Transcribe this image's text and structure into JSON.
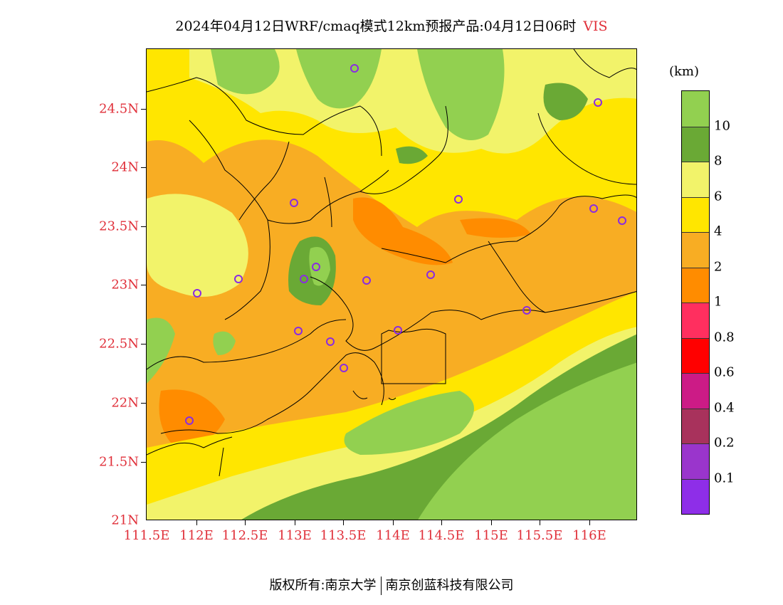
{
  "title": {
    "main": "2024年04月12日WRF/cmaq模式12km预报产品:04月12日06时",
    "variable": "VIS"
  },
  "axes": {
    "lat_labels": [
      "24.5N",
      "24N",
      "23.5N",
      "23N",
      "22.5N",
      "22N",
      "21.5N",
      "21N"
    ],
    "lon_labels": [
      "111.5E",
      "112E",
      "112.5E",
      "113E",
      "113.5E",
      "114E",
      "114.5E",
      "115E",
      "115.5E",
      "116E"
    ]
  },
  "legend": {
    "unit": "(km)",
    "levels": [
      "10",
      "8",
      "6",
      "4",
      "2",
      "1",
      "0.8",
      "0.6",
      "0.4",
      "0.2",
      "0.1"
    ],
    "colors": [
      "#92d050",
      "#6aa935",
      "#f2f36a",
      "#ffe600",
      "#f8ad23",
      "#ff8c00",
      "#ff2f5f",
      "#ff0000",
      "#cc1b86",
      "#a8325c",
      "#9a35cc",
      "#8e2ee8"
    ]
  },
  "footer": {
    "copyright": "版权所有:南京大学",
    "company": "南京创蓝科技有限公司"
  },
  "stations": [
    "s1",
    "s2",
    "s3",
    "s4",
    "s5",
    "s6",
    "s7",
    "s8",
    "s9",
    "s10",
    "s11",
    "s12",
    "s13",
    "s14",
    "s15",
    "s16",
    "s17"
  ]
}
